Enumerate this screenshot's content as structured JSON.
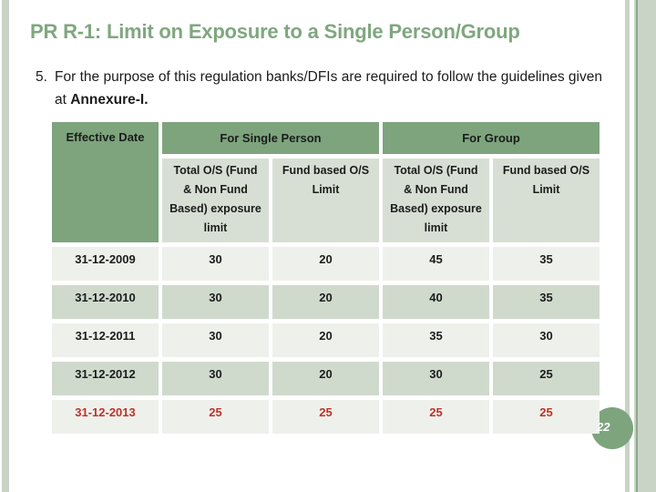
{
  "slide": {
    "title": "PR R-1: Limit on Exposure to a Single Person/Group",
    "body": {
      "list_number": "5.",
      "text_before": "For the purpose of this regulation banks/DFIs are required to follow the guidelines given at ",
      "text_bold": "Annexure-I."
    },
    "page_number": "22"
  },
  "table": {
    "corner_header": "Effective Date",
    "group_headers": [
      "For Single Person",
      "For Group"
    ],
    "sub_headers": [
      "Total O/S (Fund & Non Fund Based) exposure limit",
      "Fund based O/S Limit",
      "Total O/S (Fund & Non Fund Based) exposure limit",
      "Fund based O/S Limit"
    ],
    "rows": [
      {
        "date": "31-12-2009",
        "values": [
          "30",
          "20",
          "45",
          "35"
        ],
        "highlight": false
      },
      {
        "date": "31-12-2010",
        "values": [
          "30",
          "20",
          "40",
          "35"
        ],
        "highlight": false
      },
      {
        "date": "31-12-2011",
        "values": [
          "30",
          "20",
          "35",
          "30"
        ],
        "highlight": false
      },
      {
        "date": "31-12-2012",
        "values": [
          "30",
          "20",
          "30",
          "25"
        ],
        "highlight": false
      },
      {
        "date": "31-12-2013",
        "values": [
          "25",
          "25",
          "25",
          "25"
        ],
        "highlight": true
      }
    ]
  },
  "colors": {
    "title_green": "#7fa77f",
    "header_green": "#7da47d",
    "subheader_bg": "#d7dfd4",
    "row_light": "#eef1eb",
    "row_dark": "#cfdacd",
    "text_dark": "#1c1c1c",
    "highlight_red": "#bf312b",
    "stripe_green": "#c9d3c6",
    "stripe_dark": "#8ea98c",
    "circle_green": "#7da47d",
    "page_number_color": "#ffffff"
  }
}
